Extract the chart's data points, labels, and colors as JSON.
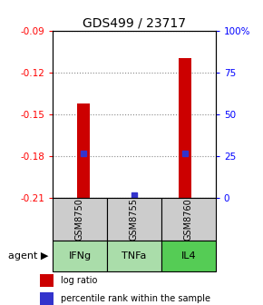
{
  "title": "GDS499 / 23717",
  "samples": [
    "GSM8750",
    "GSM8755",
    "GSM8760"
  ],
  "agents": [
    "IFNg",
    "TNFa",
    "IL4"
  ],
  "log_ratios": [
    -0.142,
    -0.21,
    -0.11
  ],
  "percentile_ranks": [
    0.27,
    0.02,
    0.27
  ],
  "bar_base": -0.21,
  "ylim": [
    -0.21,
    -0.09
  ],
  "yticks": [
    -0.21,
    -0.18,
    -0.15,
    -0.12,
    -0.09
  ],
  "y2ticks": [
    0,
    25,
    50,
    75,
    100
  ],
  "y2labels": [
    "0",
    "25",
    "50",
    "75",
    "100%"
  ],
  "bar_color": "#cc0000",
  "percentile_color": "#3333cc",
  "grid_color": "#888888",
  "sample_bg": "#cccccc",
  "agent_colors": [
    "#aaddaa",
    "#aaddaa",
    "#55cc55"
  ],
  "title_fontsize": 10,
  "tick_fontsize": 7.5,
  "label_fontsize": 8,
  "legend_fontsize": 7,
  "bar_width": 0.25,
  "percentile_marker_size": 5
}
